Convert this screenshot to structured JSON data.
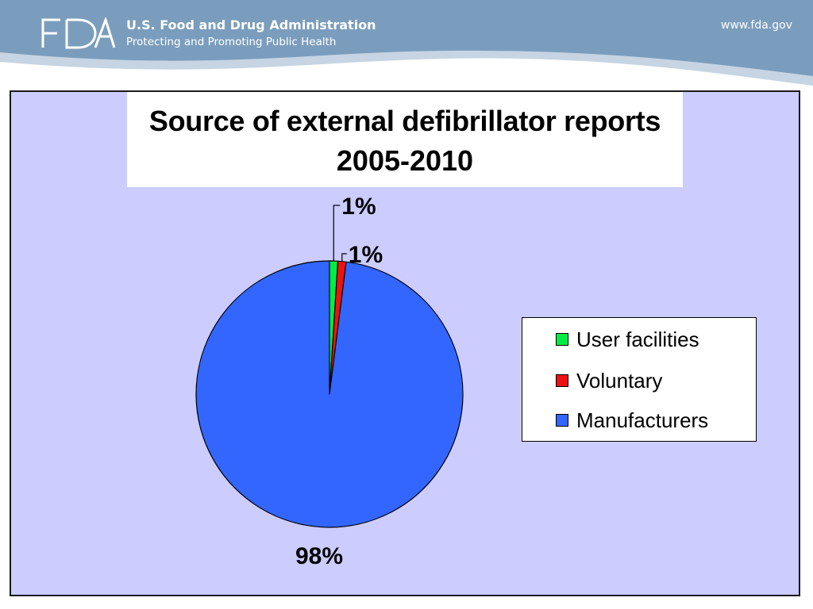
{
  "header": {
    "logo_text": "FDA",
    "org_name": "U.S. Food and Drug Administration",
    "tagline": "Protecting and Promoting Public Health",
    "url": "www.fda.gov"
  },
  "colors": {
    "header_blue": "#7b9dbd",
    "chart_background": "#ccccff",
    "user_facilities": "#00ee44",
    "voluntary": "#ee1111",
    "manufacturers": "#3366ff"
  },
  "chart_data": {
    "type": "pie",
    "title": "Source of external defibrillator reports 2005-2010",
    "title_lines": [
      "Source of external defibrillator reports",
      "2005-2010"
    ],
    "legend_position": "right",
    "slices": [
      {
        "label": "User facilities",
        "value": 1,
        "display": "1%",
        "color": "#00ee44"
      },
      {
        "label": "Voluntary",
        "value": 1,
        "display": "1%",
        "color": "#ee1111"
      },
      {
        "label": "Manufacturers",
        "value": 98,
        "display": "98%",
        "color": "#3366ff"
      }
    ]
  }
}
